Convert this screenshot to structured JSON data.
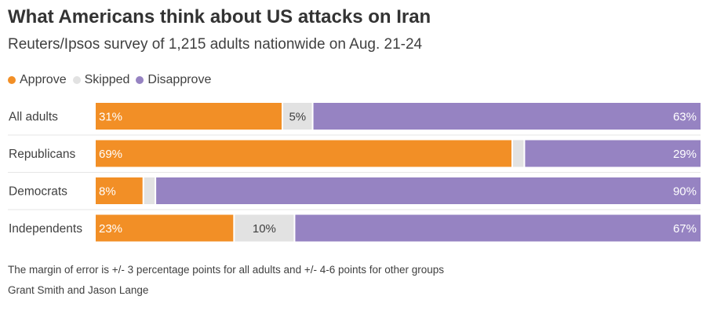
{
  "title": "What Americans think about US attacks on Iran",
  "subtitle": "Reuters/Ipsos survey of 1,215 adults nationwide on Aug. 21-24",
  "legend": [
    {
      "label": "Approve",
      "color": "#f28f26"
    },
    {
      "label": "Skipped",
      "color": "#e2e2e2"
    },
    {
      "label": "Disapprove",
      "color": "#9683c2"
    }
  ],
  "chart_data": {
    "type": "bar",
    "orientation": "horizontal",
    "stacked": true,
    "normalized": true,
    "categories": [
      "All adults",
      "Republicans",
      "Democrats",
      "Independents"
    ],
    "series": [
      {
        "name": "Approve",
        "color": "#f28f26",
        "values": [
          31,
          69,
          8,
          23
        ],
        "labels": [
          "31%",
          "69%",
          "8%",
          "23%"
        ]
      },
      {
        "name": "Skipped",
        "color": "#e2e2e2",
        "values": [
          5,
          2,
          2,
          10
        ],
        "labels": [
          "5%",
          "",
          "",
          "10%"
        ]
      },
      {
        "name": "Disapprove",
        "color": "#9683c2",
        "values": [
          63,
          29,
          90,
          67
        ],
        "labels": [
          "63%",
          "29%",
          "90%",
          "67%"
        ]
      }
    ],
    "xlim": [
      0,
      100
    ],
    "grid": false,
    "legend_position": "top-left"
  },
  "footnote": "The margin of error is +/- 3 percentage points for all adults and +/- 4-6 points for other groups",
  "credit": "Grant Smith and Jason Lange"
}
